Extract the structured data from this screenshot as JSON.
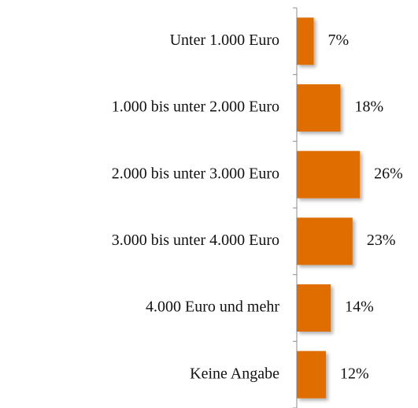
{
  "chart_data": {
    "type": "barh",
    "categories": [
      "Unter 1.000 Euro",
      "1.000 bis unter 2.000 Euro",
      "2.000 bis unter 3.000 Euro",
      "3.000 bis unter 4.000 Euro",
      "4.000 Euro und mehr",
      "Keine Angabe"
    ],
    "values": [
      7,
      18,
      26,
      23,
      14,
      12
    ],
    "value_labels": [
      "7%",
      "18%",
      "26%",
      "23%",
      "14%",
      "12%"
    ],
    "color": "#df6d00"
  }
}
